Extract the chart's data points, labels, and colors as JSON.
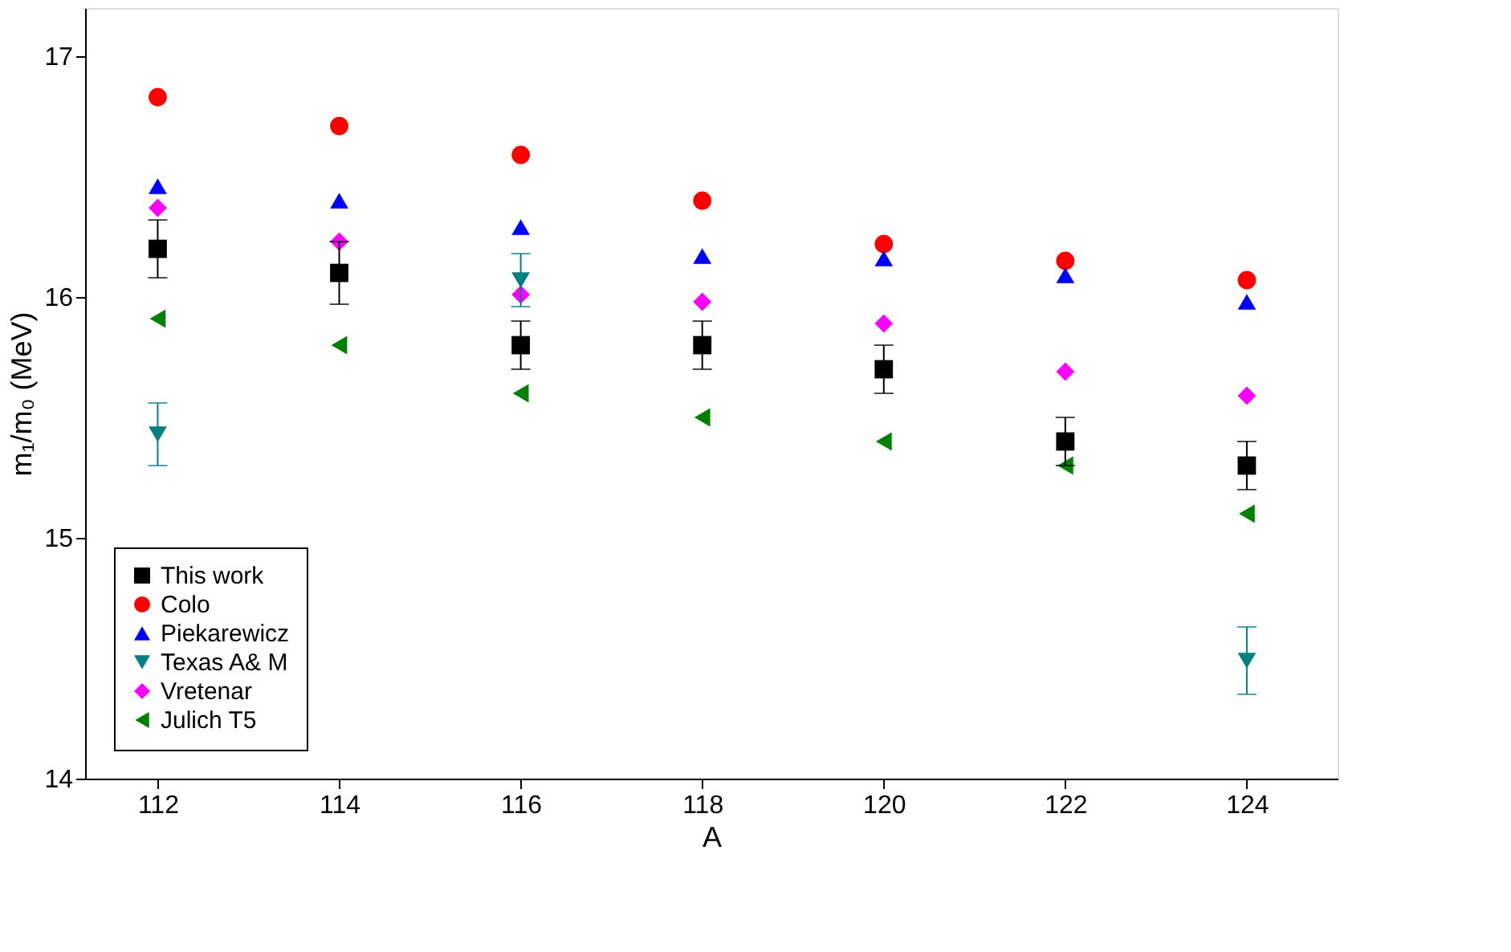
{
  "chart_data": {
    "type": "scatter",
    "xlabel": "A",
    "ylabel": "m₁/m₀ (MeV)",
    "x": [
      112,
      114,
      116,
      118,
      120,
      122,
      124
    ],
    "xlim": [
      111.2,
      125
    ],
    "xticks": [
      112,
      114,
      116,
      118,
      120,
      122,
      124
    ],
    "ylim": [
      14,
      17.2
    ],
    "yticks": [
      14,
      15,
      16,
      17
    ],
    "legend": "bottom left",
    "grid": false,
    "series": [
      {
        "name": "This work",
        "color": "#000000",
        "marker": "square",
        "values": [
          16.2,
          16.1,
          15.8,
          15.8,
          15.7,
          15.4,
          15.3
        ],
        "errors": [
          0.12,
          0.13,
          0.1,
          0.1,
          0.1,
          0.1,
          0.1
        ]
      },
      {
        "name": "Colo",
        "color": "#ff0000",
        "marker": "circle",
        "values": [
          16.83,
          16.71,
          16.59,
          16.4,
          16.22,
          16.15,
          16.07
        ]
      },
      {
        "name": "Piekarewicz",
        "color": "#0000ff",
        "marker": "triangle",
        "values": [
          16.46,
          16.4,
          16.29,
          16.17,
          16.16,
          16.09,
          15.98
        ]
      },
      {
        "name": "Texas A& M",
        "color": "#008080",
        "marker": "triangle-down",
        "values": [
          15.43,
          null,
          16.07,
          null,
          null,
          null,
          14.49
        ],
        "errors": [
          0.13,
          null,
          0.11,
          null,
          null,
          null,
          0.14
        ]
      },
      {
        "name": "Vretenar",
        "color": "#ff00ff",
        "marker": "diamond",
        "values": [
          16.37,
          16.23,
          16.01,
          15.98,
          15.89,
          15.69,
          15.59
        ]
      },
      {
        "name": "Julich T5",
        "color": "#008000",
        "marker": "triangle-left",
        "values": [
          15.91,
          15.8,
          15.6,
          15.5,
          15.4,
          15.3,
          15.1
        ]
      }
    ]
  }
}
